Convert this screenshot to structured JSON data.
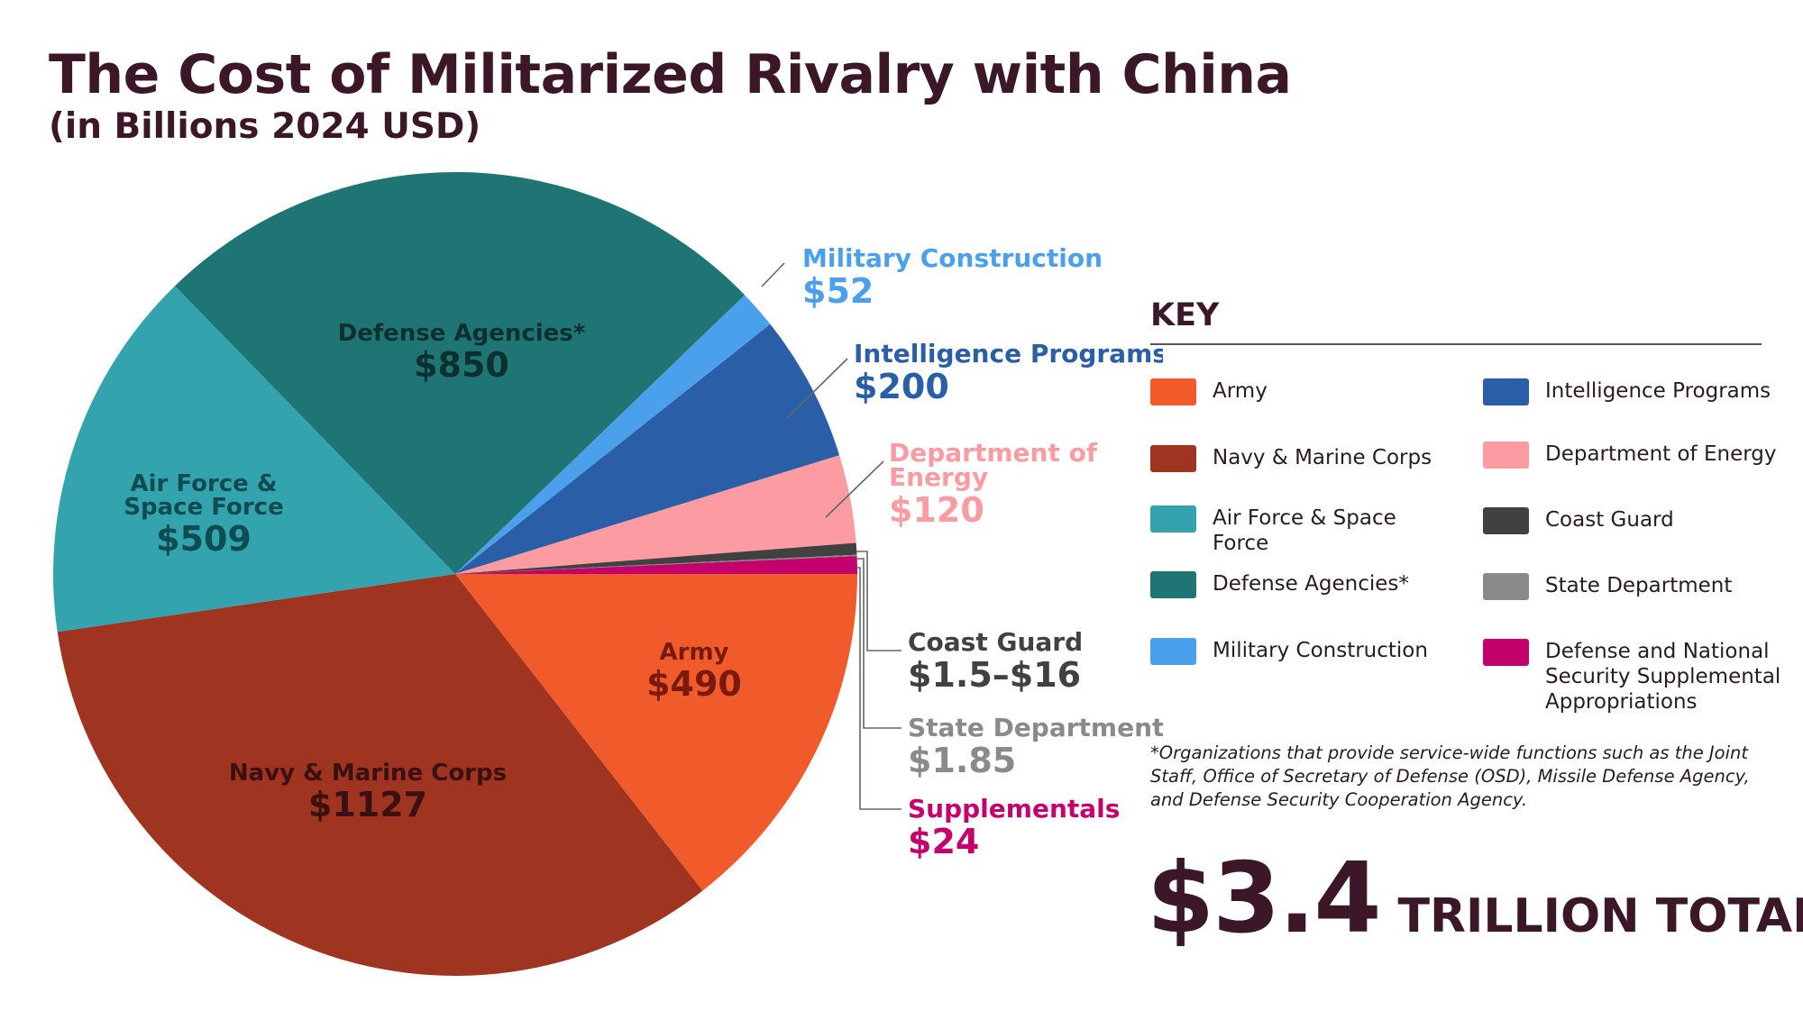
{
  "header": {
    "title": "The Cost of Militarized Rivalry with China",
    "subtitle": "(in Billions 2024 USD)"
  },
  "chart_data": {
    "type": "pie",
    "title": "The Cost of Militarized Rivalry with China",
    "subtitle": "(in Billions 2024 USD)",
    "unit": "Billions 2024 USD",
    "start": "3 o'clock, clockwise",
    "slices": [
      {
        "key": "army",
        "name": "Army",
        "value": 490,
        "value_label": "$490",
        "color": "#f15a2b"
      },
      {
        "key": "navy",
        "name": "Navy & Marine Corps",
        "value": 1127,
        "value_label": "$1127",
        "color": "#9f3421"
      },
      {
        "key": "airforce",
        "name": "Air Force & Space Force",
        "value": 509,
        "value_label": "$509",
        "color": "#33a3ad"
      },
      {
        "key": "defense",
        "name": "Defense Agencies*",
        "value": 850,
        "value_label": "$850",
        "color": "#1e7574"
      },
      {
        "key": "milcon",
        "name": "Military Construction",
        "value": 52,
        "value_label": "$52",
        "color": "#4ba0ec"
      },
      {
        "key": "intel",
        "name": "Intelligence Programs",
        "value": 200,
        "value_label": "$200",
        "color": "#2a5ea6"
      },
      {
        "key": "energy",
        "name": "Department of Energy",
        "value": 120,
        "value_label": "$120",
        "color": "#fd9ba2"
      },
      {
        "key": "coast",
        "name": "Coast Guard",
        "value": 16,
        "value_label": "$1.5–$16",
        "color": "#414141"
      },
      {
        "key": "state",
        "name": "State Department",
        "value": 1.85,
        "value_label": "$1.85",
        "color": "#8a8a8a"
      },
      {
        "key": "supp",
        "name": "Supplementals",
        "value": 24,
        "value_label": "$24",
        "color": "#c4006c"
      }
    ],
    "labels": {
      "army": {
        "lines": [
          "Army"
        ],
        "value": "$490",
        "color": "#7a1a0e"
      },
      "navy": {
        "lines": [
          "Navy & Marine Corps"
        ],
        "value": "$1127",
        "color": "#3a1010"
      },
      "airforce": {
        "lines": [
          "Air Force &",
          "Space Force"
        ],
        "value": "$509",
        "color": "#0f4c52"
      },
      "defense": {
        "lines": [
          "Defense Agencies*"
        ],
        "value": "$850",
        "color": "#0c302f"
      },
      "milcon": {
        "lines": [
          "Military Construction"
        ],
        "value": "$52",
        "color": "#4ba0ec"
      },
      "intel": {
        "lines": [
          "Intelligence Programs"
        ],
        "value": "$200",
        "color": "#2a5ea6"
      },
      "energy": {
        "lines": [
          "Department of",
          "Energy"
        ],
        "value": "$120",
        "color": "#fd9ba2"
      },
      "coast": {
        "lines": [
          "Coast Guard"
        ],
        "value": "$1.5–$16",
        "color": "#414141"
      },
      "state": {
        "lines": [
          "State Department"
        ],
        "value": "$1.85",
        "color": "#8a8a8a"
      },
      "supp": {
        "lines": [
          "Supplementals"
        ],
        "value": "$24",
        "color": "#c4006c"
      }
    }
  },
  "key": {
    "title": "KEY",
    "items": [
      {
        "label": "Army",
        "color": "#f15a2b"
      },
      {
        "label": "Navy & Marine Corps",
        "color": "#9f3421"
      },
      {
        "label": "Air Force & Space Force",
        "color": "#33a3ad"
      },
      {
        "label": "Defense Agencies*",
        "color": "#1e7574"
      },
      {
        "label": "Military Construction",
        "color": "#4ba0ec"
      },
      {
        "label": "Intelligence Programs",
        "color": "#2a5ea6"
      },
      {
        "label": "Department of Energy",
        "color": "#fd9ba2"
      },
      {
        "label": "Coast Guard",
        "color": "#414141"
      },
      {
        "label": "State Department",
        "color": "#8a8a8a"
      },
      {
        "label": "Defense and National Security Supplemental Appropriations",
        "color": "#c4006c"
      }
    ]
  },
  "footnote": "*Organizations that provide service-wide functions such as the Joint Staff, Office of Secretary of Defense (OSD), Missile Defense Agency, and Defense Security Cooperation Agency.",
  "total": {
    "amount": "$3.4",
    "unit": "TRILLION TOTAL"
  }
}
